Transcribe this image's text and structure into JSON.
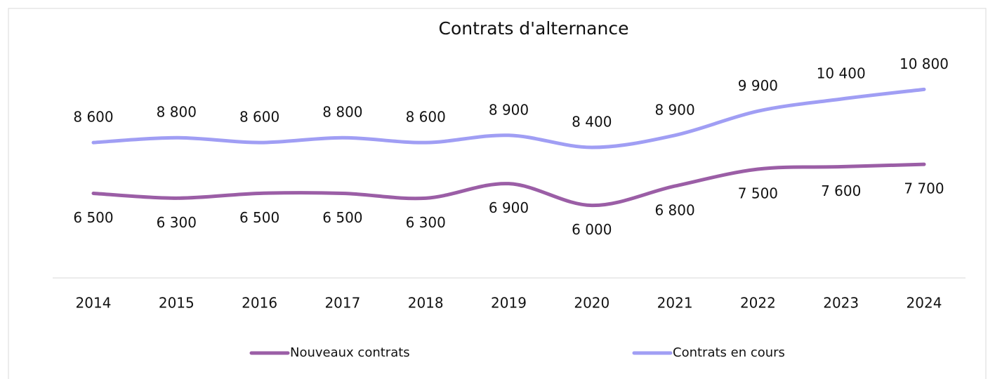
{
  "chart_data": {
    "type": "line",
    "title": "Contrats d'alternance",
    "categories": [
      "2014",
      "2015",
      "2016",
      "2017",
      "2018",
      "2019",
      "2020",
      "2021",
      "2022",
      "2023",
      "2024"
    ],
    "series": [
      {
        "name": "Nouveaux contrats",
        "color": "#9b5ea6",
        "values": [
          6500,
          6300,
          6500,
          6500,
          6300,
          6900,
          6000,
          6800,
          7500,
          7600,
          7700
        ],
        "value_labels": [
          "6 500",
          "6 300",
          "6 500",
          "6 500",
          "6 300",
          "6 900",
          "6 000",
          "6 800",
          "7 500",
          "7 600",
          "7 700"
        ]
      },
      {
        "name": "Contrats en cours",
        "color": "#a09ef4",
        "values": [
          8600,
          8800,
          8600,
          8800,
          8600,
          8900,
          8400,
          8900,
          9900,
          10400,
          10800
        ],
        "value_labels": [
          "8 600",
          "8 800",
          "8 600",
          "8 800",
          "8 600",
          "8 900",
          "8 400",
          "8 900",
          "9 900",
          "10 400",
          "10 800"
        ]
      }
    ],
    "ylim": [
      3000,
      12000
    ],
    "grid": false,
    "legend": "bottom",
    "smooth": true
  }
}
